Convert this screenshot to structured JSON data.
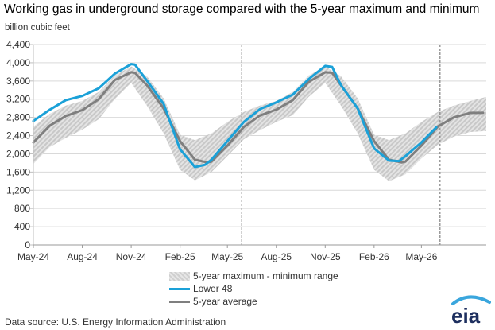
{
  "title": "Working gas in underground  storage compared with the 5-year maximum and minimum",
  "source": "Data source:  U.S. Energy Information Administration",
  "logo_text": "eia",
  "colors": {
    "lower48": "#1ba1d8",
    "avg": "#7f7f7f",
    "range": "#d4d4d4",
    "logo_arc": "#3aa6dd",
    "logo_text": "#1e2f5f"
  },
  "chart_data": {
    "type": "line",
    "ylabel": "billion cubic feet",
    "ylim": [
      0,
      4400
    ],
    "yticks": [
      0,
      400,
      800,
      1200,
      1600,
      2000,
      2400,
      2800,
      3200,
      3600,
      4000,
      4400
    ],
    "ytick_labels": [
      "0",
      "400",
      "800",
      "1,200",
      "1,600",
      "2,000",
      "2,400",
      "2,800",
      "3,200",
      "3,600",
      "4,000",
      "4,400"
    ],
    "xlim": [
      "2024-05-01",
      "2026-08-31"
    ],
    "xticks": [
      "2024-05-01",
      "2024-08-01",
      "2024-11-01",
      "2025-02-01",
      "2025-05-01",
      "2025-08-01",
      "2025-11-01",
      "2026-02-01",
      "2026-05-01"
    ],
    "xtick_labels": [
      "May-24",
      "Aug-24",
      "Nov-24",
      "Feb-25",
      "May-25",
      "Aug-25",
      "Nov-25",
      "Feb-26",
      "May-26"
    ],
    "vlines": [
      "2025-05-28",
      "2026-06-05"
    ],
    "legend": [
      {
        "name": "5-year maximum - minimum range",
        "kind": "band"
      },
      {
        "name": "Lower 48",
        "kind": "line"
      },
      {
        "name": "5-year average",
        "kind": "line"
      }
    ],
    "range_band": {
      "x": [
        "2024-05-01",
        "2024-06-01",
        "2024-07-01",
        "2024-08-01",
        "2024-09-01",
        "2024-10-01",
        "2024-11-01",
        "2024-12-01",
        "2025-01-01",
        "2025-02-01",
        "2025-03-01",
        "2025-04-01",
        "2025-05-01",
        "2025-06-01",
        "2025-07-01",
        "2025-08-01",
        "2025-09-01",
        "2025-10-01",
        "2025-11-01",
        "2025-12-01",
        "2026-01-01",
        "2026-02-01",
        "2026-03-01",
        "2026-04-01",
        "2026-05-01",
        "2026-06-01",
        "2026-07-01",
        "2026-08-01",
        "2026-08-31"
      ],
      "max": [
        2600,
        2880,
        3060,
        3160,
        3360,
        3720,
        3920,
        3700,
        3220,
        2420,
        2300,
        2450,
        2700,
        2920,
        3060,
        3160,
        3360,
        3720,
        3920,
        3700,
        3220,
        2420,
        2300,
        2450,
        2700,
        2920,
        3060,
        3160,
        3250
      ],
      "min": [
        1780,
        2150,
        2350,
        2530,
        2760,
        3200,
        3560,
        3050,
        2450,
        1650,
        1420,
        1600,
        1950,
        2320,
        2520,
        2700,
        2850,
        3250,
        3560,
        3050,
        2450,
        1650,
        1400,
        1550,
        1900,
        2200,
        2380,
        2480,
        2500
      ]
    },
    "series": [
      {
        "name": "Lower 48",
        "x": [
          "2024-05-01",
          "2024-06-01",
          "2024-07-01",
          "2024-08-01",
          "2024-09-01",
          "2024-10-01",
          "2024-11-01",
          "2024-11-08",
          "2024-12-01",
          "2025-01-01",
          "2025-02-01",
          "2025-03-01",
          "2025-03-20",
          "2025-04-01",
          "2025-05-01",
          "2025-06-01",
          "2025-07-01",
          "2025-08-01",
          "2025-09-01",
          "2025-10-01",
          "2025-11-01",
          "2025-11-14",
          "2025-12-01",
          "2026-01-01",
          "2026-02-01",
          "2026-03-01",
          "2026-03-20",
          "2026-04-01",
          "2026-05-01",
          "2026-05-29"
        ],
        "values": [
          2720,
          2970,
          3180,
          3270,
          3440,
          3760,
          3970,
          3960,
          3600,
          3100,
          2100,
          1710,
          1760,
          1870,
          2280,
          2700,
          2980,
          3130,
          3300,
          3640,
          3930,
          3910,
          3500,
          3000,
          2120,
          1850,
          1840,
          1950,
          2250,
          2580
        ]
      },
      {
        "name": "5-year average",
        "x": [
          "2024-05-01",
          "2024-06-01",
          "2024-07-01",
          "2024-08-01",
          "2024-09-01",
          "2024-10-01",
          "2024-11-01",
          "2024-11-08",
          "2024-12-01",
          "2025-01-01",
          "2025-02-01",
          "2025-03-01",
          "2025-03-25",
          "2025-04-01",
          "2025-05-01",
          "2025-06-01",
          "2025-07-01",
          "2025-08-01",
          "2025-09-01",
          "2025-10-01",
          "2025-11-01",
          "2025-11-14",
          "2025-12-01",
          "2026-01-01",
          "2026-02-01",
          "2026-03-01",
          "2026-03-25",
          "2026-04-01",
          "2026-05-01",
          "2026-06-01",
          "2026-07-01",
          "2026-08-01",
          "2026-08-25"
        ],
        "values": [
          2250,
          2620,
          2830,
          2960,
          3200,
          3620,
          3790,
          3780,
          3500,
          3000,
          2280,
          1870,
          1810,
          1830,
          2180,
          2590,
          2840,
          2970,
          3180,
          3580,
          3790,
          3780,
          3500,
          3000,
          2280,
          1870,
          1810,
          1830,
          2180,
          2600,
          2800,
          2900,
          2900
        ]
      }
    ]
  }
}
